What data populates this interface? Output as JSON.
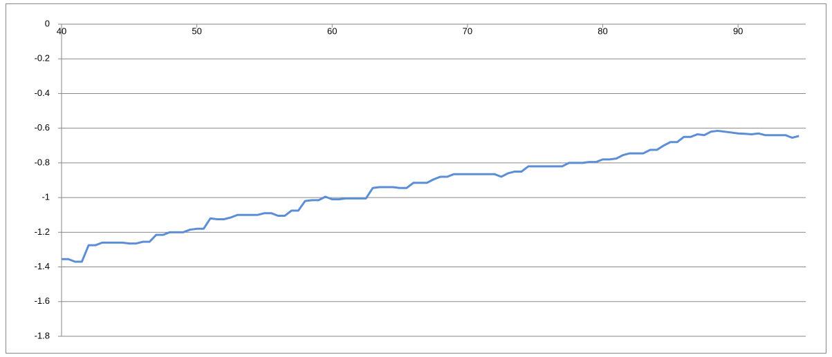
{
  "chart_data": {
    "type": "line",
    "x": [
      40,
      40.5,
      41,
      41.5,
      42,
      42.5,
      43,
      43.5,
      44,
      44.5,
      45,
      45.5,
      46,
      46.5,
      47,
      47.5,
      48,
      48.5,
      49,
      49.5,
      50,
      50.5,
      51,
      51.5,
      52,
      52.5,
      53,
      53.5,
      54,
      54.5,
      55,
      55.5,
      56,
      56.5,
      57,
      57.5,
      58,
      58.5,
      59,
      59.5,
      60,
      60.5,
      61,
      61.5,
      62,
      62.5,
      63,
      63.5,
      64,
      64.5,
      65,
      65.5,
      66,
      66.5,
      67,
      67.5,
      68,
      68.5,
      69,
      69.5,
      70,
      70.5,
      71,
      71.5,
      72,
      72.5,
      73,
      73.5,
      74,
      74.5,
      75,
      75.5,
      76,
      76.5,
      77,
      77.5,
      78,
      78.5,
      79,
      79.5,
      80,
      80.5,
      81,
      81.5,
      82,
      82.5,
      83,
      83.5,
      84,
      84.5,
      85,
      85.5,
      86,
      86.5,
      87,
      87.5,
      88,
      88.5,
      89,
      89.5,
      90,
      90.5,
      91,
      91.5,
      92,
      92.5,
      93,
      93.5,
      94,
      94.5
    ],
    "series": [
      {
        "color": "#5b8ed6",
        "values": [
          -1.355,
          -1.355,
          -1.37,
          -1.37,
          -1.275,
          -1.275,
          -1.26,
          -1.26,
          -1.26,
          -1.26,
          -1.265,
          -1.265,
          -1.255,
          -1.255,
          -1.215,
          -1.215,
          -1.2,
          -1.2,
          -1.2,
          -1.185,
          -1.18,
          -1.18,
          -1.12,
          -1.125,
          -1.125,
          -1.115,
          -1.1,
          -1.1,
          -1.1,
          -1.1,
          -1.09,
          -1.09,
          -1.105,
          -1.105,
          -1.075,
          -1.075,
          -1.02,
          -1.015,
          -1.015,
          -0.995,
          -1.01,
          -1.01,
          -1.005,
          -1.005,
          -1.005,
          -1.005,
          -0.945,
          -0.94,
          -0.94,
          -0.94,
          -0.945,
          -0.945,
          -0.915,
          -0.915,
          -0.915,
          -0.895,
          -0.88,
          -0.88,
          -0.865,
          -0.865,
          -0.865,
          -0.865,
          -0.865,
          -0.865,
          -0.865,
          -0.88,
          -0.86,
          -0.85,
          -0.85,
          -0.82,
          -0.82,
          -0.82,
          -0.82,
          -0.82,
          -0.82,
          -0.8,
          -0.8,
          -0.8,
          -0.795,
          -0.795,
          -0.78,
          -0.78,
          -0.775,
          -0.755,
          -0.745,
          -0.745,
          -0.745,
          -0.725,
          -0.725,
          -0.7,
          -0.68,
          -0.68,
          -0.65,
          -0.65,
          -0.635,
          -0.64,
          -0.62,
          -0.615,
          -0.62,
          -0.625,
          -0.63,
          -0.632,
          -0.635,
          -0.63,
          -0.64,
          -0.64,
          -0.64,
          -0.64,
          -0.655,
          -0.645
        ]
      }
    ],
    "xlim": [
      40,
      95
    ],
    "xticks": [
      40,
      50,
      60,
      70,
      80,
      90
    ],
    "ylim": [
      -1.8,
      0
    ],
    "yticks": [
      0,
      -0.2,
      -0.4,
      -0.6,
      -0.8,
      -1,
      -1.2,
      -1.4,
      -1.6,
      -1.8
    ],
    "grid": true
  }
}
